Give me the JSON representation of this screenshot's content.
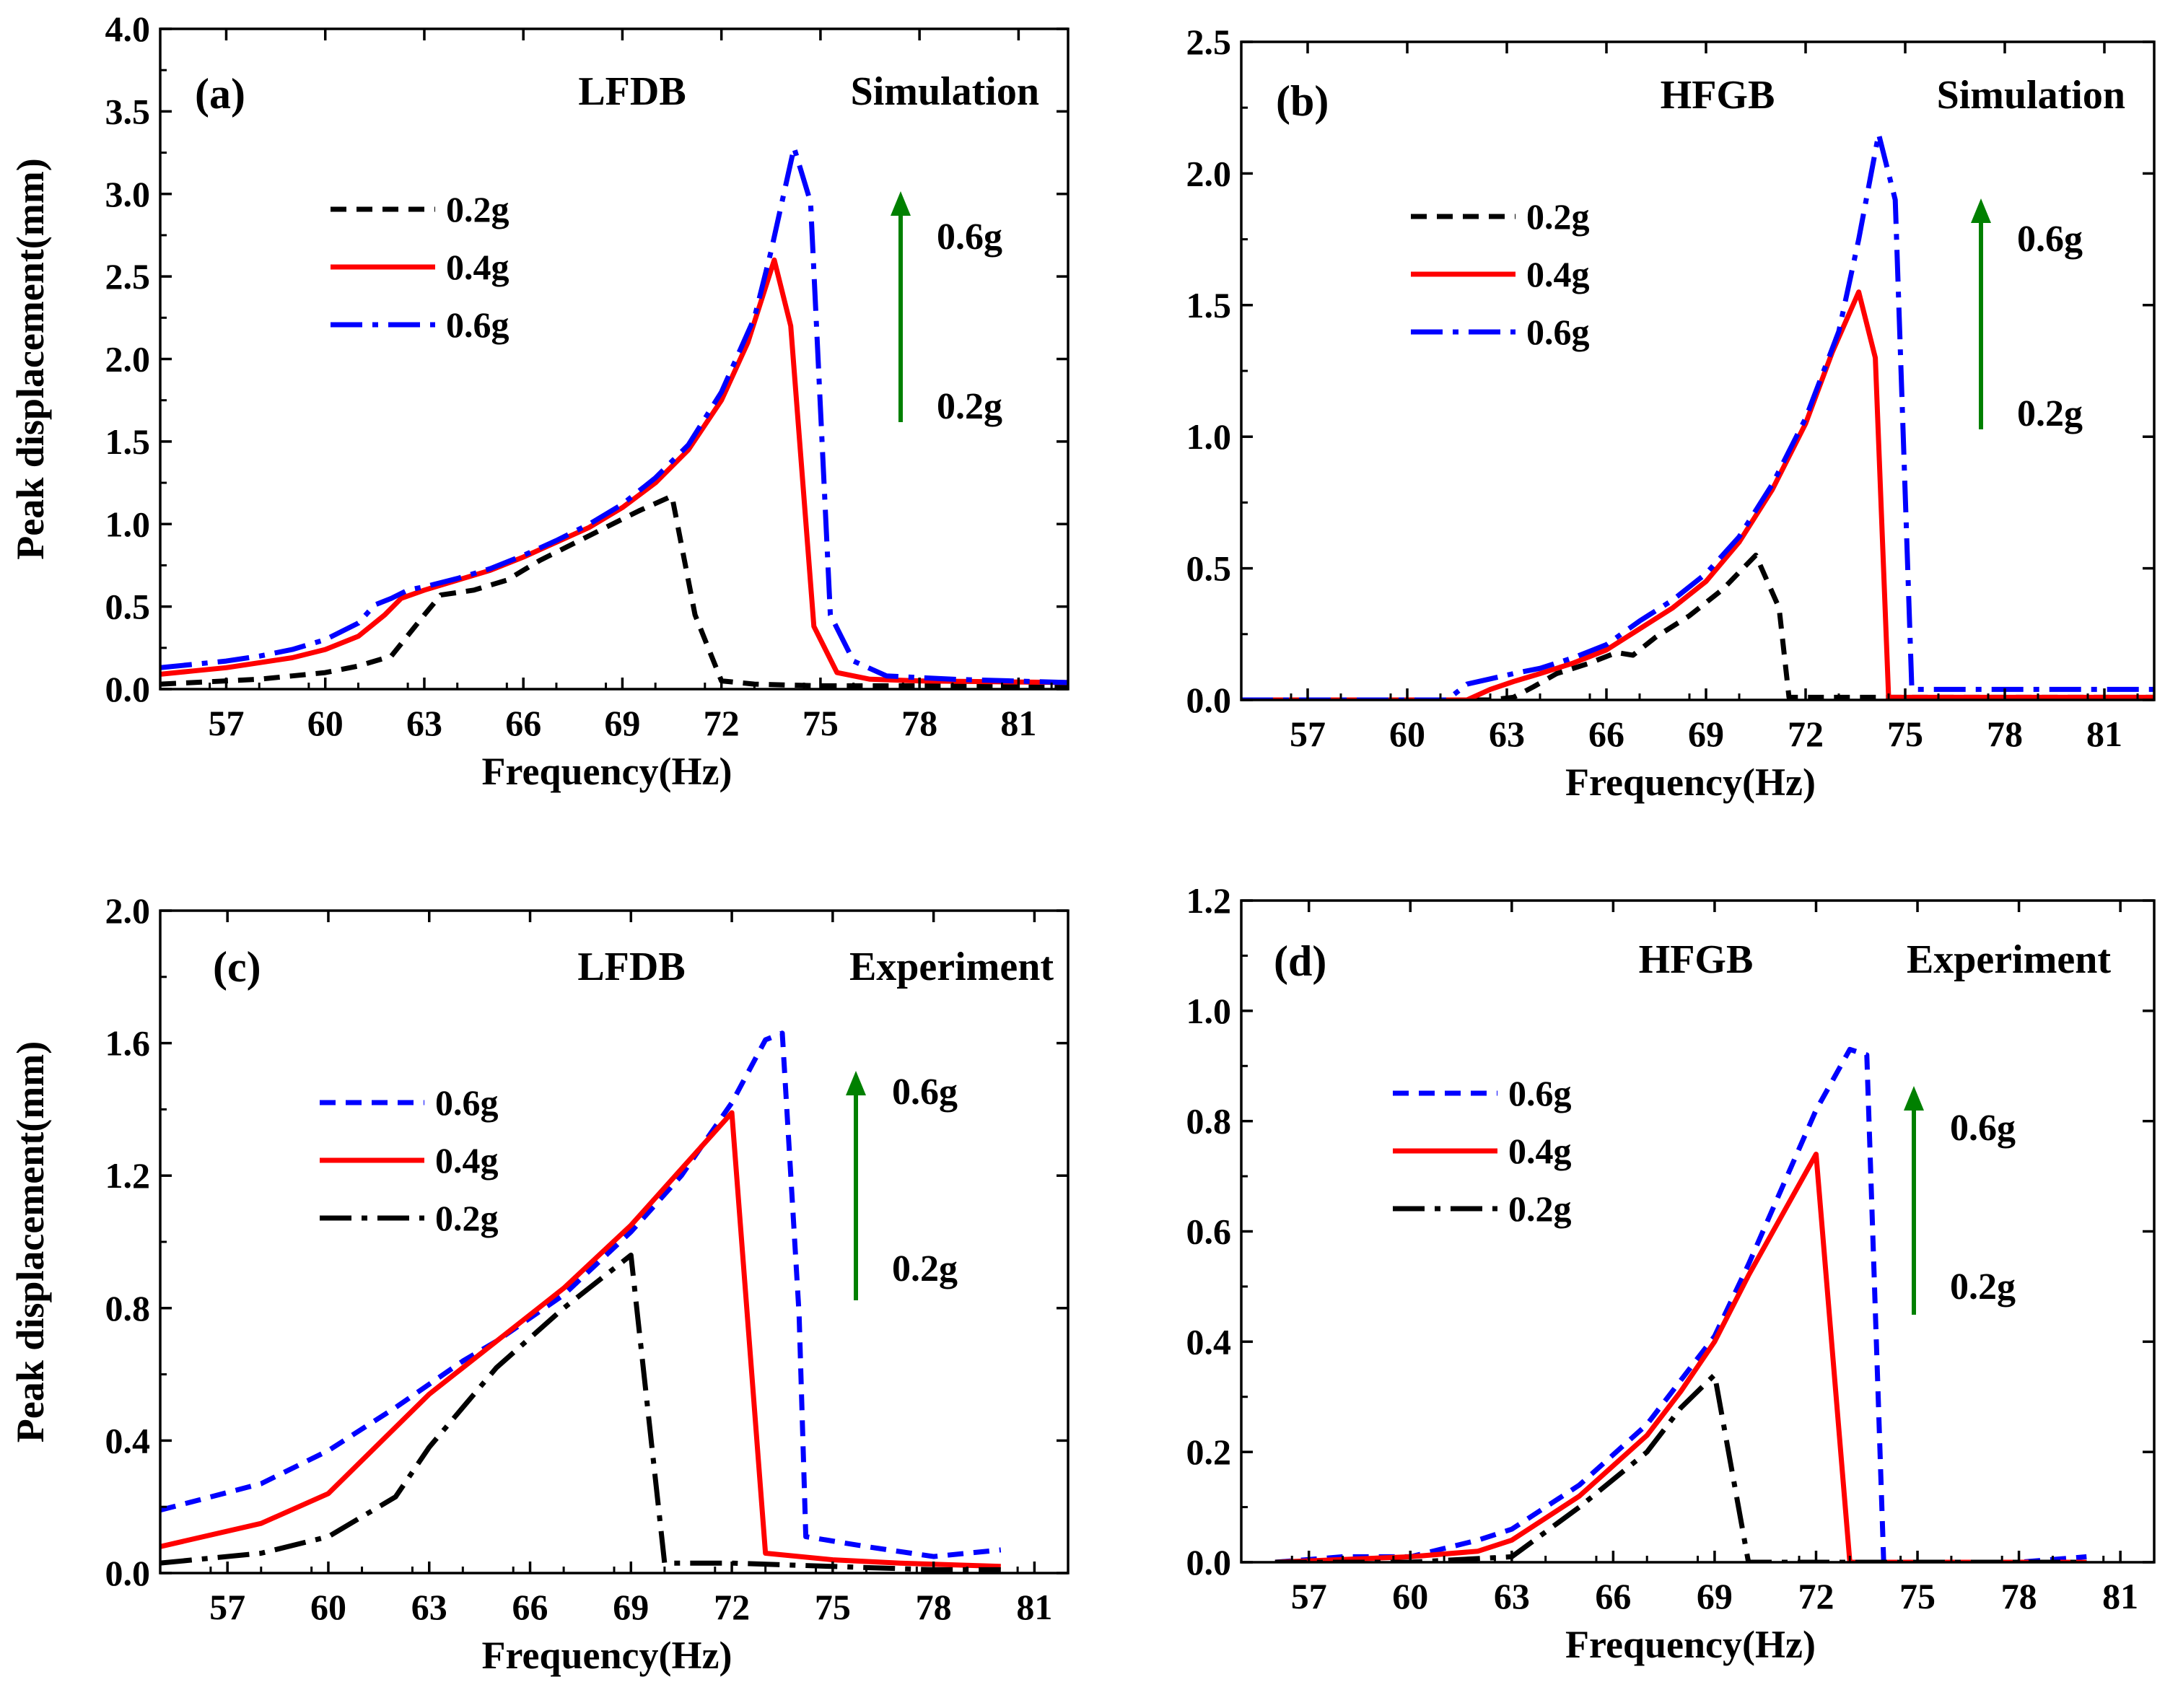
{
  "chart_data": [
    {
      "type": "line",
      "panel": "(a)",
      "specimen": "LFDB",
      "mode": "Simulation",
      "xlabel": "Frequency(Hz)",
      "ylabel": "Peak displacement(mm)",
      "xlim": [
        55,
        82.5
      ],
      "ylim": [
        0,
        4.0
      ],
      "xticks": [
        "57",
        "60",
        "63",
        "66",
        "69",
        "72",
        "75",
        "78",
        "81"
      ],
      "yticks": [
        "0.0",
        "0.5",
        "1.0",
        "1.5",
        "2.0",
        "2.5",
        "3.0",
        "3.5",
        "4.0"
      ],
      "arrow": {
        "low": "0.2g",
        "high": "0.6g"
      },
      "legend_order": [
        "0.2g",
        "0.4g",
        "0.6g"
      ],
      "series": [
        {
          "name": "0.2g",
          "color": "#000000",
          "style": "short-dash",
          "x": [
            55,
            57,
            58,
            59,
            60,
            61,
            62,
            63,
            63.5,
            64.5,
            65.5,
            66.5,
            67.5,
            68.5,
            69.5,
            70.5,
            71.2,
            72,
            73,
            74,
            75,
            76,
            78,
            82.5
          ],
          "y": [
            0.03,
            0.05,
            0.06,
            0.08,
            0.1,
            0.14,
            0.2,
            0.45,
            0.57,
            0.6,
            0.66,
            0.78,
            0.88,
            0.98,
            1.08,
            1.17,
            0.45,
            0.05,
            0.03,
            0.025,
            0.02,
            0.02,
            0.02,
            0.02
          ]
        },
        {
          "name": "0.4g",
          "color": "#ff0000",
          "style": "solid",
          "x": [
            55,
            56,
            57,
            58,
            59,
            60,
            61,
            61.8,
            62.3,
            63,
            64,
            65,
            66,
            67,
            68,
            69,
            70,
            71,
            72,
            72.8,
            73.6,
            74.1,
            74.8,
            75.5,
            76.5,
            78,
            82.5
          ],
          "y": [
            0.09,
            0.11,
            0.13,
            0.16,
            0.19,
            0.24,
            0.32,
            0.45,
            0.55,
            0.6,
            0.66,
            0.72,
            0.8,
            0.89,
            0.98,
            1.1,
            1.25,
            1.45,
            1.75,
            2.1,
            2.6,
            2.2,
            0.38,
            0.1,
            0.06,
            0.05,
            0.04
          ]
        },
        {
          "name": "0.6g",
          "color": "#0000ff",
          "style": "dash-dot",
          "x": [
            55,
            56,
            57,
            58,
            59,
            60,
            61,
            61.5,
            62,
            62.5,
            63,
            64,
            65,
            66,
            67,
            68,
            69,
            70,
            71,
            72,
            73,
            73.5,
            74.2,
            74.7,
            75.3,
            76,
            77,
            79,
            82.5
          ],
          "y": [
            0.13,
            0.15,
            0.17,
            0.2,
            0.24,
            0.3,
            0.4,
            0.51,
            0.55,
            0.6,
            0.62,
            0.67,
            0.73,
            0.81,
            0.9,
            1.0,
            1.12,
            1.28,
            1.48,
            1.8,
            2.25,
            2.65,
            3.28,
            2.95,
            0.45,
            0.17,
            0.08,
            0.06,
            0.04
          ]
        }
      ]
    },
    {
      "type": "line",
      "panel": "(b)",
      "specimen": "HFGB",
      "mode": "Simulation",
      "xlabel": "Frequency(Hz)",
      "ylabel": "",
      "xlim": [
        55,
        82.5
      ],
      "ylim": [
        0,
        2.5
      ],
      "xticks": [
        "57",
        "60",
        "63",
        "66",
        "69",
        "72",
        "75",
        "78",
        "81"
      ],
      "yticks": [
        "0.0",
        "0.5",
        "1.0",
        "1.5",
        "2.0",
        "2.5"
      ],
      "arrow": {
        "low": "0.2g",
        "high": "0.6g"
      },
      "legend_order": [
        "0.2g",
        "0.4g",
        "0.6g"
      ],
      "series": [
        {
          "name": "0.2g",
          "color": "#000000",
          "style": "short-dash",
          "x": [
            55,
            62.5,
            63.2,
            63.8,
            64.5,
            65.5,
            66.3,
            66.8,
            67.5,
            68.5,
            69.5,
            70.5,
            71.2,
            71.5,
            72,
            74,
            76,
            82.5
          ],
          "y": [
            0,
            0,
            0.01,
            0.05,
            0.1,
            0.14,
            0.18,
            0.17,
            0.24,
            0.32,
            0.42,
            0.55,
            0.35,
            0.01,
            0.01,
            0.01,
            0.01,
            0.01
          ]
        },
        {
          "name": "0.4g",
          "color": "#ff0000",
          "style": "solid",
          "x": [
            55,
            61.8,
            62.5,
            63.2,
            64,
            65,
            66,
            67,
            68,
            69,
            70,
            71,
            72,
            72.8,
            73.6,
            74.1,
            74.5,
            75,
            82.5
          ],
          "y": [
            0,
            0,
            0.04,
            0.07,
            0.1,
            0.14,
            0.19,
            0.27,
            0.35,
            0.45,
            0.6,
            0.8,
            1.05,
            1.32,
            1.55,
            1.3,
            0.01,
            0.01,
            0.01
          ]
        },
        {
          "name": "0.6g",
          "color": "#0000ff",
          "style": "dash-dot",
          "x": [
            55,
            61.2,
            61.8,
            62.5,
            63.2,
            64,
            65,
            66,
            67,
            68,
            69,
            70,
            71,
            72,
            73,
            73.6,
            74.2,
            74.7,
            75.2,
            75.6,
            77,
            82.5
          ],
          "y": [
            0,
            0,
            0.06,
            0.08,
            0.1,
            0.12,
            0.16,
            0.21,
            0.3,
            0.38,
            0.48,
            0.62,
            0.82,
            1.07,
            1.4,
            1.75,
            2.15,
            1.9,
            0.04,
            0.04,
            0.04,
            0.04
          ]
        }
      ]
    },
    {
      "type": "line",
      "panel": "(c)",
      "specimen": "LFDB",
      "mode": "Experiment",
      "xlabel": "Frequency(Hz)",
      "ylabel": "Peak displacement(mm)",
      "xlim": [
        55,
        82
      ],
      "ylim": [
        0,
        2.0
      ],
      "xticks": [
        "57",
        "60",
        "63",
        "66",
        "69",
        "72",
        "75",
        "78",
        "81"
      ],
      "yticks": [
        "0.0",
        "0.4",
        "0.8",
        "1.2",
        "1.6",
        "2.0"
      ],
      "arrow": {
        "low": "0.2g",
        "high": "0.6g"
      },
      "legend_order": [
        "0.6g",
        "0.4g",
        "0.2g"
      ],
      "series": [
        {
          "name": "0.6g",
          "color": "#0000ff",
          "style": "short-dash",
          "x": [
            55,
            58,
            60,
            62,
            64,
            65,
            67,
            69,
            70.5,
            72,
            73,
            73.5,
            74,
            74.2,
            76,
            78,
            80
          ],
          "y": [
            0.19,
            0.27,
            0.37,
            0.5,
            0.64,
            0.7,
            0.84,
            1.03,
            1.2,
            1.42,
            1.61,
            1.63,
            0.78,
            0.11,
            0.08,
            0.05,
            0.07
          ]
        },
        {
          "name": "0.4g",
          "color": "#ff0000",
          "style": "solid",
          "x": [
            55,
            58,
            60,
            62,
            63,
            65,
            67,
            69,
            70.5,
            72,
            73,
            75,
            77,
            80
          ],
          "y": [
            0.08,
            0.15,
            0.24,
            0.44,
            0.54,
            0.7,
            0.86,
            1.05,
            1.22,
            1.39,
            0.06,
            0.04,
            0.03,
            0.02
          ]
        },
        {
          "name": "0.2g",
          "color": "#000000",
          "style": "dash-dot",
          "x": [
            55,
            58,
            60,
            62,
            63,
            65,
            67,
            69,
            70,
            72,
            75,
            78,
            80
          ],
          "y": [
            0.03,
            0.06,
            0.11,
            0.23,
            0.38,
            0.62,
            0.8,
            0.96,
            0.03,
            0.03,
            0.02,
            0.01,
            0.01
          ]
        }
      ]
    },
    {
      "type": "line",
      "panel": "(d)",
      "specimen": "HFGB",
      "mode": "Experiment",
      "xlabel": "Frequency(Hz)",
      "ylabel": "",
      "xlim": [
        55,
        82
      ],
      "ylim": [
        0,
        1.2
      ],
      "xticks": [
        "57",
        "60",
        "63",
        "66",
        "69",
        "72",
        "75",
        "78",
        "81"
      ],
      "yticks": [
        "0.0",
        "0.2",
        "0.4",
        "0.6",
        "0.8",
        "1.0",
        "1.2"
      ],
      "arrow": {
        "low": "0.2g",
        "high": "0.6g"
      },
      "legend_order": [
        "0.6g",
        "0.4g",
        "0.2g"
      ],
      "series": [
        {
          "name": "0.6g",
          "color": "#0000ff",
          "style": "short-dash",
          "x": [
            56,
            58,
            60,
            62,
            63,
            65,
            67,
            68,
            69,
            70,
            71,
            72,
            73,
            73.5,
            74,
            74.2,
            76,
            78,
            80
          ],
          "y": [
            0.0,
            0.01,
            0.01,
            0.04,
            0.06,
            0.14,
            0.25,
            0.33,
            0.41,
            0.54,
            0.68,
            0.82,
            0.93,
            0.92,
            0.0,
            0.0,
            0.0,
            0.0,
            0.01
          ]
        },
        {
          "name": "0.4g",
          "color": "#ff0000",
          "style": "solid",
          "x": [
            56,
            60,
            62,
            63,
            65,
            67,
            68,
            69,
            70,
            71,
            72,
            73,
            75,
            78,
            80
          ],
          "y": [
            0.0,
            0.01,
            0.02,
            0.04,
            0.12,
            0.23,
            0.31,
            0.4,
            0.52,
            0.63,
            0.74,
            0.0,
            0.0,
            0.0,
            0.0
          ]
        },
        {
          "name": "0.2g",
          "color": "#000000",
          "style": "dash-dot",
          "x": [
            56,
            60,
            63,
            65,
            67,
            68,
            69,
            70,
            72,
            75,
            78,
            80
          ],
          "y": [
            0.0,
            0.0,
            0.01,
            0.1,
            0.2,
            0.28,
            0.34,
            0.0,
            0.0,
            0.0,
            0.0,
            0.0
          ]
        }
      ]
    }
  ]
}
